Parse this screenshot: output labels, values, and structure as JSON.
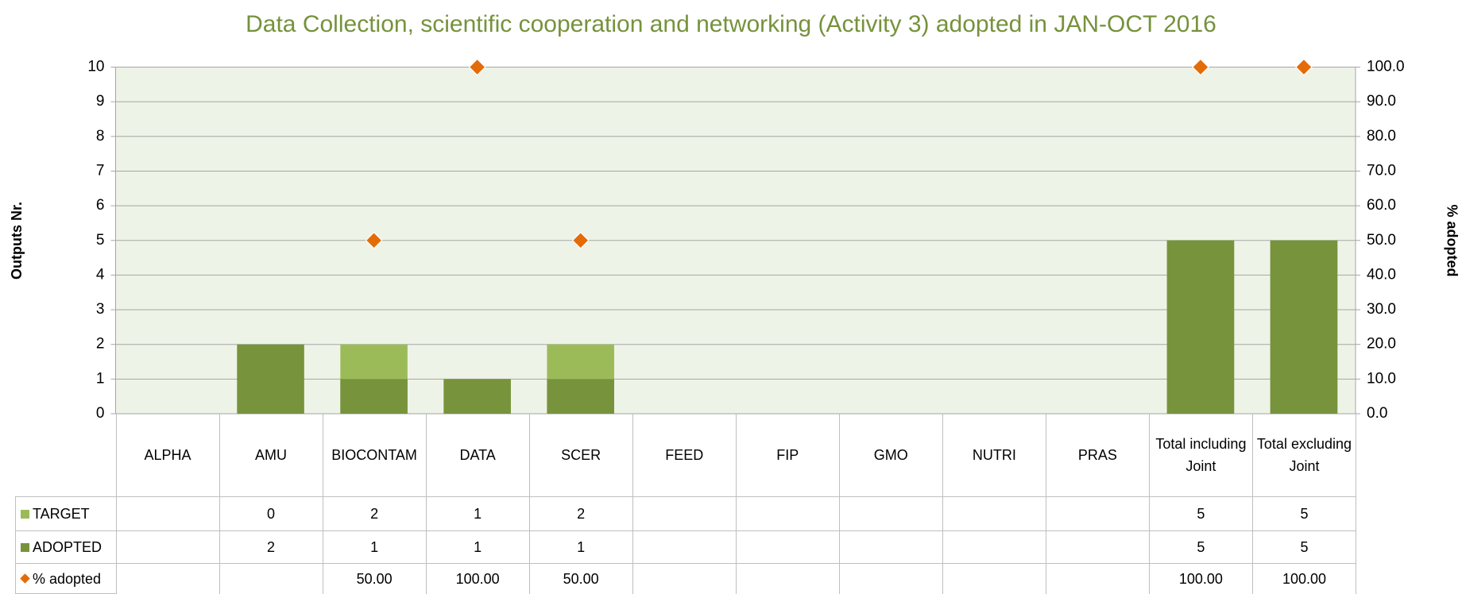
{
  "chart_data": {
    "type": "bar",
    "title": "Data Collection, scientific cooperation and networking (Activity 3) adopted in JAN-OCT 2016",
    "y_label": "Outputs Nr.",
    "y2_label": "% adopted",
    "categories": [
      "ALPHA",
      "AMU",
      "BIOCONTAM",
      "DATA",
      "SCER",
      "FEED",
      "FIP",
      "GMO",
      "NUTRI",
      "PRAS",
      "Total including Joint",
      "Total excluding Joint"
    ],
    "series": [
      {
        "name": "TARGET",
        "color": "#9bbb59",
        "type": "bar",
        "values": [
          null,
          0,
          2,
          1,
          2,
          null,
          null,
          null,
          null,
          null,
          5,
          5
        ]
      },
      {
        "name": "ADOPTED",
        "color": "#77933c",
        "type": "bar",
        "values": [
          null,
          2,
          1,
          1,
          1,
          null,
          null,
          null,
          null,
          null,
          5,
          5
        ]
      },
      {
        "name": "% adopted",
        "color": "#e36c09",
        "type": "scatter",
        "marker": "diamond",
        "axis": "y2",
        "values": [
          null,
          null,
          50,
          100,
          50,
          null,
          null,
          null,
          null,
          null,
          100,
          100
        ],
        "value_labels": [
          null,
          null,
          "50.00",
          "100.00",
          "50.00",
          null,
          null,
          null,
          null,
          null,
          "100.00",
          "100.00"
        ]
      }
    ],
    "ylim": [
      0,
      10
    ],
    "yticks": [
      0,
      1,
      2,
      3,
      4,
      5,
      6,
      7,
      8,
      9,
      10
    ],
    "y2lim": [
      0,
      100
    ],
    "y2ticks": [
      {
        "value": 0,
        "label": "0.0"
      },
      {
        "value": 10,
        "label": "10.0"
      },
      {
        "value": 20,
        "label": "20.0"
      },
      {
        "value": 30,
        "label": "30.0"
      },
      {
        "value": 40,
        "label": "40.0"
      },
      {
        "value": 50,
        "label": "50.0"
      },
      {
        "value": 60,
        "label": "60.0"
      },
      {
        "value": 70,
        "label": "70.0"
      },
      {
        "value": 80,
        "label": "80.0"
      },
      {
        "value": 90,
        "label": "90.0"
      },
      {
        "value": 100,
        "label": "100.0"
      }
    ],
    "grid": true,
    "data_table": true
  }
}
